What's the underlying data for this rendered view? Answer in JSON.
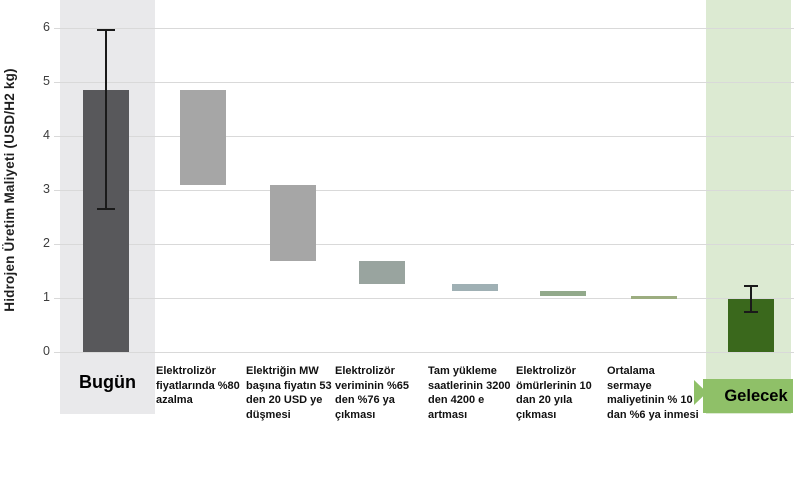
{
  "chart_data": {
    "type": "bar",
    "subtype": "waterfall",
    "title": "",
    "ylabel": "Hidrojen Üretim Maliyeti (USD/H2 kg)",
    "xlabel": "",
    "ylim": [
      0,
      6
    ],
    "yticks": [
      0,
      1,
      2,
      3,
      4,
      5,
      6
    ],
    "grid": "horizontal",
    "legend": "none",
    "bars": [
      {
        "label": "Bugün",
        "kind": "total",
        "from": 0,
        "to": 4.85,
        "error_low": 2.65,
        "error_high": 5.97,
        "color": "#58585b"
      },
      {
        "label": "Elektrolizör fiyatlarında %80 azalma",
        "kind": "decrease",
        "from": 4.85,
        "to": 3.1,
        "color": "#a6a6a6"
      },
      {
        "label": "Elektriğin MW başına fiyatın 53 den 20 USD ye düşmesi",
        "kind": "decrease",
        "from": 3.1,
        "to": 1.68,
        "color": "#a6a6a6"
      },
      {
        "label": "Elektrolizör veriminin %65 den %76 ya çıkması",
        "kind": "decrease",
        "from": 1.68,
        "to": 1.26,
        "color": "#99a49f"
      },
      {
        "label": "Tam yükleme saatlerinin 3200 den 4200 e artması",
        "kind": "decrease",
        "from": 1.26,
        "to": 1.13,
        "color": "#9fb0b4"
      },
      {
        "label": "Elektrolizör ömürlerinin 10 dan 20 yıla çıkması",
        "kind": "decrease",
        "from": 1.13,
        "to": 1.04,
        "color": "#92a98b"
      },
      {
        "label": "Ortalama sermaye maliyetinin % 10 dan %6 ya inmesi",
        "kind": "decrease",
        "from": 1.04,
        "to": 0.98,
        "color": "#9cad80"
      },
      {
        "label": "Gelecek",
        "kind": "total",
        "from": 0,
        "to": 0.98,
        "error_low": 0.75,
        "error_high": 1.22,
        "color": "#3a681c"
      }
    ],
    "colors": {
      "today_band": "#e9e9eb",
      "future_band": "#dcead2",
      "future_ribbon": "#8fc068",
      "gridline": "#d9d9d9",
      "error_bar": "#1a1a1a"
    }
  }
}
